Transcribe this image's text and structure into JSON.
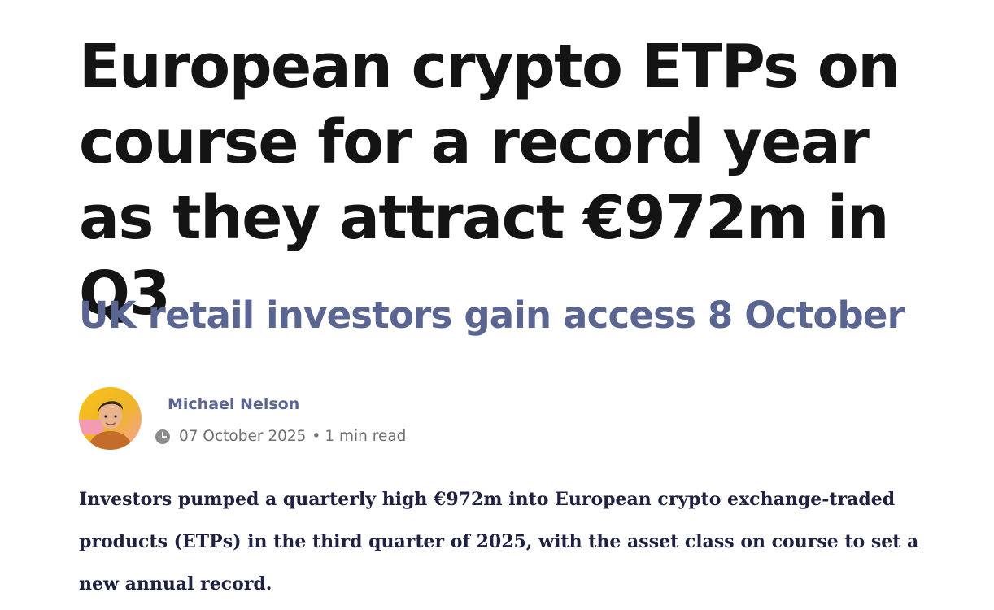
{
  "article": {
    "headline": "European crypto ETPs on course for a record year as they attract €972m in Q3",
    "subheadline": "UK retail investors gain access 8 October",
    "author": {
      "name": "Michael Nelson",
      "avatar_icon": "author-avatar-photo"
    },
    "meta": {
      "clock_icon": "clock-icon",
      "date": "07 October 2025",
      "separator": "•",
      "read_time": "1 min read"
    },
    "lede": "Investors pumped a quarterly high €972m into European crypto exchange-traded products (ETPs) in the third quarter of 2025, with the asset class on course to set a new annual record."
  },
  "colors": {
    "headline": "#141414",
    "accent": "#5a6591",
    "meta": "#6f6f6f",
    "lede": "#1f2140"
  }
}
